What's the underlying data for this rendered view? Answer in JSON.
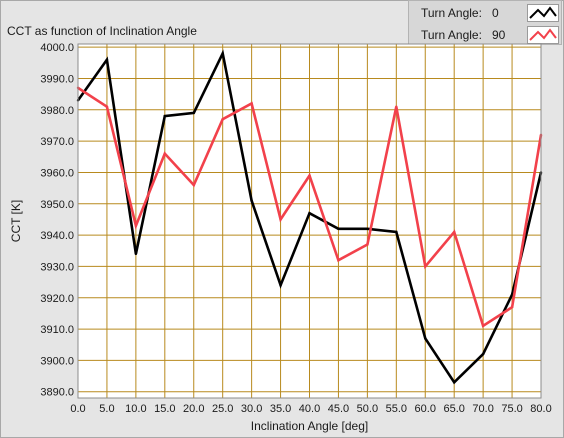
{
  "colors": {
    "plot_background": "#ffffff",
    "grid": "#b88a1e",
    "series_0": "#000000",
    "series_90": "#f2414b",
    "panel": "#e5e5e5"
  },
  "legend": {
    "rows": [
      {
        "label": "Turn Angle:",
        "value": "0",
        "color": "#000000"
      },
      {
        "label": "Turn Angle:",
        "value": "90",
        "color": "#f2414b"
      }
    ]
  },
  "chart_data": {
    "type": "line",
    "title": "CCT as function of Inclination Angle",
    "xlabel": "Inclination Angle [deg]",
    "ylabel": "CCT [K]",
    "xlim": [
      0,
      80
    ],
    "ylim": [
      3888,
      4001
    ],
    "x": [
      0,
      5,
      10,
      15,
      20,
      25,
      30,
      35,
      40,
      45,
      50,
      55,
      60,
      65,
      70,
      75,
      80
    ],
    "x_tick_labels": [
      "0.0",
      "5.0",
      "10.0",
      "15.0",
      "20.0",
      "25.0",
      "30.0",
      "35.0",
      "40.0",
      "45.0",
      "50.0",
      "55.0",
      "60.0",
      "65.0",
      "70.0",
      "75.0",
      "80.0"
    ],
    "y_ticks": [
      3890,
      3900,
      3910,
      3920,
      3930,
      3940,
      3950,
      3960,
      3970,
      3980,
      3990,
      4000
    ],
    "y_tick_labels": [
      "3890.0",
      "3900.0",
      "3910.0",
      "3920.0",
      "3930.0",
      "3940.0",
      "3950.0",
      "3960.0",
      "3970.0",
      "3980.0",
      "3990.0",
      "4000.0"
    ],
    "grid": true,
    "legend_position": "top-right",
    "series": [
      {
        "name": "Turn Angle: 0",
        "color": "#000000",
        "values": [
          3983,
          3996,
          3934,
          3978,
          3979,
          3998,
          3951,
          3924,
          3947,
          3942,
          3942,
          3941,
          3907,
          3893,
          3902,
          3921,
          3960
        ]
      },
      {
        "name": "Turn Angle: 90",
        "color": "#f2414b",
        "values": [
          3987,
          3981,
          3943,
          3966,
          3956,
          3977,
          3982,
          3945,
          3959,
          3932,
          3937,
          3981,
          3930,
          3941,
          3911,
          3917,
          3972
        ]
      }
    ]
  }
}
